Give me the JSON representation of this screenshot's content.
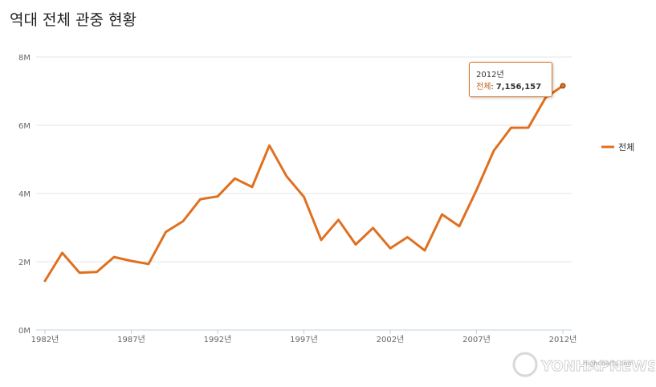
{
  "chart_data": {
    "type": "line",
    "title": "역대 전체 관중 현황",
    "x": [
      1982,
      1983,
      1984,
      1985,
      1986,
      1987,
      1988,
      1989,
      1990,
      1991,
      1992,
      1993,
      1994,
      1995,
      1996,
      1997,
      1998,
      1999,
      2000,
      2001,
      2002,
      2003,
      2004,
      2005,
      2006,
      2007,
      2008,
      2009,
      2010,
      2011,
      2012
    ],
    "x_tick_labels": [
      "1982년",
      "1987년",
      "1992년",
      "1997년",
      "2002년",
      "2007년",
      "2012년"
    ],
    "x_tick_values": [
      1982,
      1987,
      1992,
      1997,
      2002,
      2007,
      2012
    ],
    "y_tick_labels": [
      "0M",
      "2M",
      "4M",
      "6M",
      "8M"
    ],
    "y_tick_values": [
      0,
      2000000,
      4000000,
      6000000,
      8000000
    ],
    "ylim": [
      0,
      8000000
    ],
    "series": [
      {
        "name": "전체",
        "color": "#e07020",
        "values": [
          1438000,
          2262000,
          1679000,
          1700000,
          2140000,
          2023000,
          1935000,
          2873000,
          3189000,
          3833000,
          3914000,
          4440000,
          4191000,
          5406000,
          4501000,
          3901000,
          2640000,
          3228000,
          2507000,
          2991000,
          2396000,
          2721000,
          2332000,
          3388000,
          3040000,
          4104000,
          5256000,
          5926000,
          5929000,
          6810000,
          7156157
        ]
      }
    ],
    "legend": {
      "position": "right",
      "label": "전체"
    },
    "tooltip": {
      "x_label": "2012년",
      "series_label": "전체",
      "value_label": "7,156,157"
    },
    "grid": true
  },
  "credit": "Highcharts.com",
  "watermark": "YONHAPNEWS"
}
